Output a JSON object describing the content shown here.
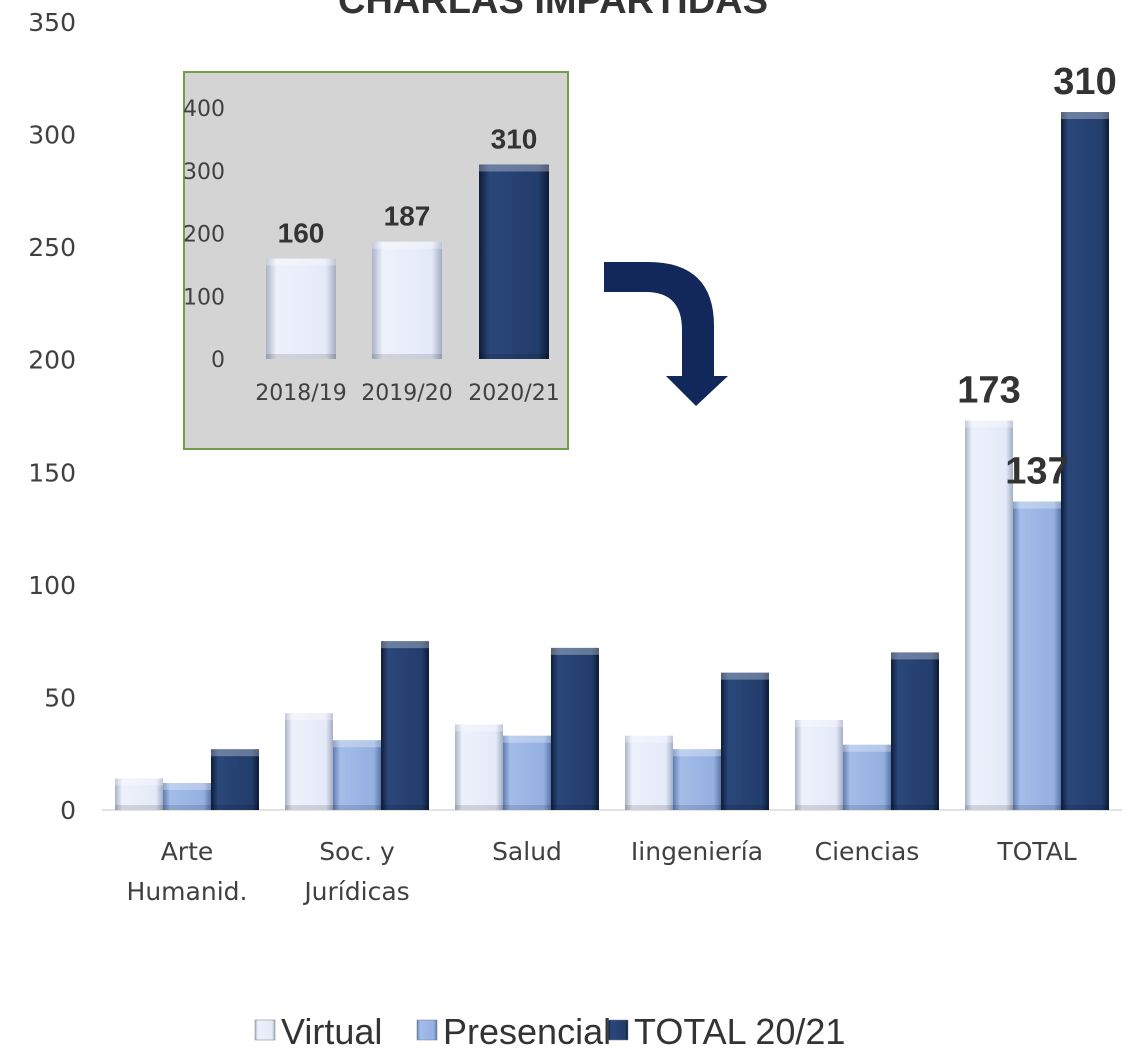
{
  "chart_data": [
    {
      "type": "bar",
      "title": "CHARLAS IMPARTIDAS",
      "categories": [
        [
          "Arte",
          "Humanid."
        ],
        [
          "Soc. y",
          "Jurídicas"
        ],
        [
          "Salud"
        ],
        [
          "Iingeniería"
        ],
        [
          "Ciencias"
        ],
        [
          "TOTAL"
        ]
      ],
      "series": [
        {
          "name": "Virtual",
          "values": [
            14,
            43,
            38,
            33,
            40,
            173
          ],
          "color": "#e4eaf8"
        },
        {
          "name": "Presencial",
          "values": [
            12,
            31,
            33,
            27,
            29,
            137
          ],
          "color": "#94b0e0"
        },
        {
          "name": "TOTAL 20/21",
          "values": [
            27,
            75,
            72,
            61,
            70,
            310
          ],
          "color": "#223d6b"
        }
      ],
      "ylim": [
        0,
        350
      ],
      "yticks": [
        "0",
        "50",
        "100",
        "150",
        "200",
        "250",
        "300",
        "350"
      ],
      "data_labels": [
        "173",
        "137",
        "310"
      ],
      "legend_position": "bottom",
      "grid": false
    },
    {
      "type": "bar",
      "categories": [
        "2018/19",
        "2019/20",
        "2020/21"
      ],
      "values": [
        160,
        187,
        310
      ],
      "colors": [
        "#e4eaf8",
        "#e4eaf8",
        "#223d6b"
      ],
      "ylim": [
        0,
        400
      ],
      "yticks": [
        "0",
        "100",
        "200",
        "300",
        "400"
      ],
      "data_labels": [
        "160",
        "187",
        "310"
      ],
      "background": "#d4d4d4",
      "border_color": "#70a045",
      "grid": false
    }
  ],
  "arrow": {
    "color": "#13285a",
    "icon": "curved-down-arrow-icon"
  }
}
